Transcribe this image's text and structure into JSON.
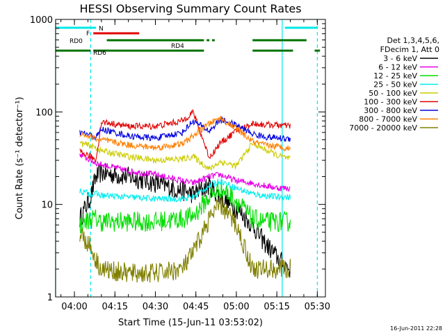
{
  "chart_data": {
    "type": "line",
    "title": "HESSI Observing Summary Count Rates",
    "xlabel": "Start Time (15-Jun-11 03:53:02)",
    "ylabel": "Count Rate (s⁻¹ detector⁻¹)",
    "yscale": "log",
    "ylim": [
      1,
      1000
    ],
    "xlim": [
      "03:53:02",
      "05:33:00"
    ],
    "x_ticks": [
      "04:00",
      "04:15",
      "04:30",
      "04:45",
      "05:00",
      "05:15",
      "05:30"
    ],
    "y_ticks": [
      "1",
      "10",
      "100",
      "1000"
    ],
    "footer": "16-Jun-2011 22:28",
    "legend_header": [
      "Det 1,3,4,5,6,",
      "FDecim 1, Att 0"
    ],
    "flags": [
      {
        "label": "N",
        "color": "#00e8e8",
        "segments": [
          [
            "03:53",
            "04:08"
          ],
          [
            "05:18",
            "05:30"
          ]
        ]
      },
      {
        "label": "F",
        "color": "#e00000",
        "segments": [
          [
            "04:07",
            "04:24"
          ]
        ]
      },
      {
        "label": "RD0",
        "color": "#007000",
        "segments": [
          [
            "04:12",
            "04:48"
          ],
          [
            "04:49",
            "04:50"
          ],
          [
            "04:51",
            "04:52"
          ],
          [
            "05:06",
            "05:26"
          ]
        ]
      },
      {
        "label": "RD4",
        "color": "#007000",
        "segments": [
          [
            "03:53",
            "04:06"
          ],
          [
            "04:07",
            "04:48"
          ],
          [
            "05:06",
            "05:21"
          ],
          [
            "05:29",
            "05:31"
          ]
        ]
      },
      {
        "label": "RD6",
        "color": "#007000",
        "segments": []
      }
    ],
    "vlines": [
      {
        "time": "03:53",
        "color": "#00e8e8",
        "style": "solid"
      },
      {
        "time": "04:06",
        "color": "#00e8e8",
        "style": "dashed"
      },
      {
        "time": "05:17",
        "color": "#00e8e8",
        "style": "solid"
      },
      {
        "time": "05:30",
        "color": "#00e8e8",
        "style": "dashed"
      }
    ],
    "series": [
      {
        "name": "3 - 6 keV",
        "color": "#000000",
        "x": [
          "04:02",
          "04:06",
          "04:08",
          "04:10",
          "04:20",
          "04:30",
          "04:40",
          "04:44",
          "04:50",
          "04:54",
          "05:00",
          "05:06",
          "05:10",
          "05:16",
          "05:20"
        ],
        "values": [
          7,
          12,
          20,
          22,
          20,
          17,
          14,
          13,
          16,
          12,
          9,
          6,
          4,
          2.5,
          2
        ]
      },
      {
        "name": "6 - 12 keV",
        "color": "#e600e6",
        "x": [
          "04:02",
          "04:06",
          "04:08",
          "04:10",
          "04:20",
          "04:30",
          "04:40",
          "04:44",
          "04:50",
          "04:54",
          "05:00",
          "05:06",
          "05:10",
          "05:16",
          "05:20"
        ],
        "values": [
          35,
          30,
          28,
          27,
          23,
          21,
          18,
          17,
          20,
          21,
          18,
          17,
          16,
          15,
          15
        ]
      },
      {
        "name": "12 - 25 keV",
        "color": "#00dd00",
        "x": [
          "04:02",
          "04:06",
          "04:08",
          "04:10",
          "04:20",
          "04:30",
          "04:40",
          "04:44",
          "04:50",
          "04:54",
          "05:00",
          "05:06",
          "05:10",
          "05:16",
          "05:20"
        ],
        "values": [
          6,
          7,
          7,
          6.5,
          6.5,
          6.5,
          7,
          7.5,
          12,
          15,
          11,
          7,
          6.5,
          6.5,
          6.5
        ]
      },
      {
        "name": "25 - 50 keV",
        "color": "#00eeee",
        "x": [
          "04:02",
          "04:06",
          "04:08",
          "04:10",
          "04:20",
          "04:30",
          "04:40",
          "04:44",
          "04:50",
          "04:54",
          "05:00",
          "05:06",
          "05:10",
          "05:16",
          "05:20"
        ],
        "values": [
          14,
          13,
          13,
          12.5,
          12,
          11.5,
          11.5,
          12,
          16,
          18,
          15,
          13,
          12.5,
          12,
          12
        ]
      },
      {
        "name": "50 - 100 keV",
        "color": "#cccc00",
        "x": [
          "04:02",
          "04:06",
          "04:08",
          "04:10",
          "04:20",
          "04:30",
          "04:40",
          "04:44",
          "04:50",
          "04:54",
          "05:00",
          "05:06",
          "05:10",
          "05:16",
          "05:20"
        ],
        "values": [
          46,
          43,
          41,
          38,
          33,
          30,
          31,
          33,
          24,
          29,
          26,
          46,
          40,
          33,
          31
        ]
      },
      {
        "name": "100 - 300 keV",
        "color": "#e00000",
        "x": [
          "04:02",
          "04:06",
          "04:08",
          "04:10",
          "04:20",
          "04:30",
          "04:40",
          "04:44",
          "04:50",
          "04:54",
          "05:00",
          "05:06",
          "05:10",
          "05:16",
          "05:20"
        ],
        "values": [
          37,
          33,
          30,
          78,
          70,
          70,
          80,
          100,
          32,
          46,
          62,
          75,
          73,
          72,
          70
        ]
      },
      {
        "name": "300 - 800 keV",
        "color": "#0000e0",
        "x": [
          "04:02",
          "04:06",
          "04:08",
          "04:10",
          "04:20",
          "04:30",
          "04:40",
          "04:44",
          "04:50",
          "04:54",
          "05:00",
          "05:06",
          "05:10",
          "05:16",
          "05:20"
        ],
        "values": [
          60,
          56,
          53,
          65,
          55,
          52,
          60,
          80,
          62,
          82,
          72,
          58,
          54,
          52,
          51
        ]
      },
      {
        "name": "800 - 7000 keV",
        "color": "#ff8000",
        "x": [
          "04:02",
          "04:06",
          "04:08",
          "04:10",
          "04:20",
          "04:30",
          "04:40",
          "04:44",
          "04:50",
          "04:54",
          "05:00",
          "05:06",
          "05:10",
          "05:16",
          "05:20"
        ],
        "values": [
          58,
          54,
          51,
          50,
          44,
          41,
          45,
          55,
          75,
          86,
          66,
          48,
          44,
          42,
          40
        ]
      },
      {
        "name": "7000 - 20000 keV",
        "color": "#808000",
        "x": [
          "04:02",
          "04:06",
          "04:08",
          "04:10",
          "04:20",
          "04:30",
          "04:40",
          "04:44",
          "04:50",
          "04:54",
          "05:00",
          "05:06",
          "05:10",
          "05:16",
          "05:20"
        ],
        "values": [
          5,
          3.5,
          2.5,
          2,
          1.8,
          1.8,
          2,
          3,
          7,
          10,
          6,
          2,
          2,
          2,
          2
        ]
      }
    ]
  }
}
